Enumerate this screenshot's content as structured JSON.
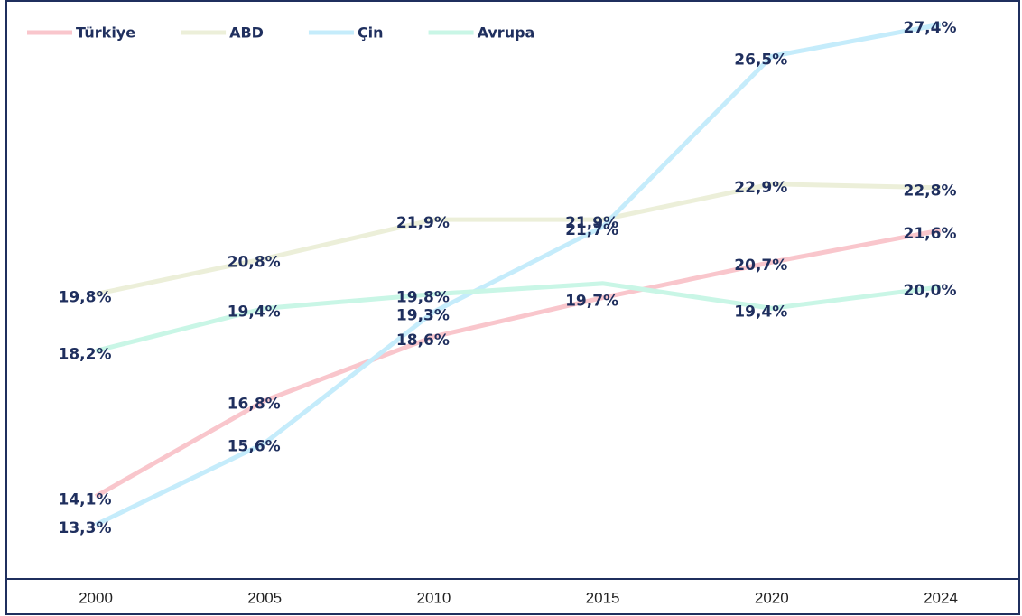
{
  "chart_data": {
    "type": "line",
    "categories": [
      "2000",
      "2005",
      "2010",
      "2015",
      "2020",
      "2024"
    ],
    "series": [
      {
        "name": "Türkiye",
        "color": "#f9c6cc",
        "values": [
          14.1,
          16.8,
          18.6,
          19.7,
          20.7,
          21.6
        ],
        "value_labels": [
          "14,1%",
          "16,8%",
          "18,6%",
          "19,7%",
          "20,7%",
          "21,6%"
        ]
      },
      {
        "name": "ABD",
        "color": "#ecefd9",
        "values": [
          19.8,
          20.8,
          21.9,
          21.9,
          22.9,
          22.8
        ],
        "value_labels": [
          "19,8%",
          "20,8%",
          "21,9%",
          "21,9%",
          "22,9%",
          "22,8%"
        ]
      },
      {
        "name": "Çin",
        "color": "#c5ecfb",
        "values": [
          13.3,
          15.6,
          19.3,
          21.7,
          26.5,
          27.4
        ],
        "value_labels": [
          "13,3%",
          "15,6%",
          "19,3%",
          "21,7%",
          "26,5%",
          "27,4%"
        ]
      },
      {
        "name": "Avrupa",
        "color": "#c9f6e6",
        "values": [
          18.2,
          19.4,
          19.8,
          20.1,
          19.4,
          20.0
        ],
        "value_labels": [
          "18,2%",
          "19,4%",
          "19,8%",
          null,
          "19,4%",
          "20,0%"
        ]
      }
    ],
    "legend": "top-left"
  }
}
